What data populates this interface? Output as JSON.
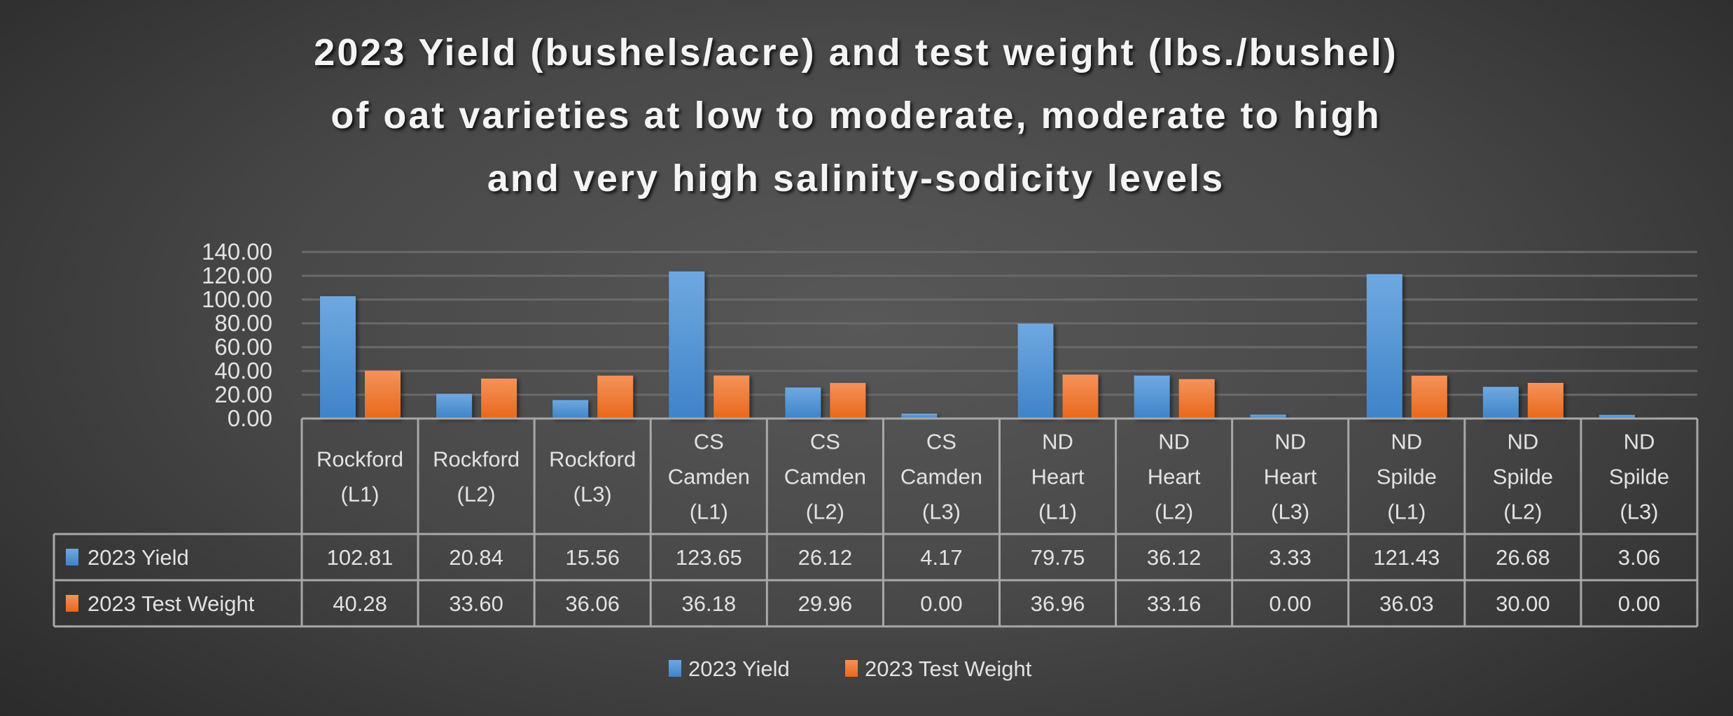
{
  "chart_data": {
    "type": "bar",
    "title_lines": [
      "2023 Yield (bushels/acre) and test weight (lbs./bushel)",
      "of oat varieties at low to moderate, moderate to high",
      "and very high salinity-sodicity levels"
    ],
    "categories": [
      [
        "Rockford",
        "(L1)"
      ],
      [
        "Rockford",
        "(L2)"
      ],
      [
        "Rockford",
        "(L3)"
      ],
      [
        "CS",
        "Camden",
        "(L1)"
      ],
      [
        "CS",
        "Camden",
        "(L2)"
      ],
      [
        "CS",
        "Camden",
        "(L3)"
      ],
      [
        "ND",
        "Heart",
        "(L1)"
      ],
      [
        "ND",
        "Heart",
        "(L2)"
      ],
      [
        "ND",
        "Heart",
        "(L3)"
      ],
      [
        "ND",
        "Spilde",
        "(L1)"
      ],
      [
        "ND",
        "Spilde",
        "(L2)"
      ],
      [
        "ND",
        "Spilde",
        "(L3)"
      ]
    ],
    "series": [
      {
        "name": "2023 Yield",
        "color": "#4a90d9",
        "values": [
          102.81,
          20.84,
          15.56,
          123.65,
          26.12,
          4.17,
          79.75,
          36.12,
          3.33,
          121.43,
          26.68,
          3.06
        ],
        "labels": [
          "102.81",
          "20.84",
          "15.56",
          "123.65",
          "26.12",
          "4.17",
          "79.75",
          "36.12",
          "3.33",
          "121.43",
          "26.68",
          "3.06"
        ]
      },
      {
        "name": "2023 Test Weight",
        "color": "#ee7326",
        "values": [
          40.28,
          33.6,
          36.06,
          36.18,
          29.96,
          0.0,
          36.96,
          33.16,
          0.0,
          36.03,
          30.0,
          0.0
        ],
        "labels": [
          "40.28",
          "33.60",
          "36.06",
          "36.18",
          "29.96",
          "0.00",
          "36.96",
          "33.16",
          "0.00",
          "36.03",
          "30.00",
          "0.00"
        ]
      }
    ],
    "ylim": [
      0,
      140
    ],
    "yticks": [
      "0.00",
      "20.00",
      "40.00",
      "60.00",
      "80.00",
      "100.00",
      "120.00",
      "140.00"
    ],
    "grid": true,
    "data_table": true,
    "legend_position": "bottom"
  }
}
